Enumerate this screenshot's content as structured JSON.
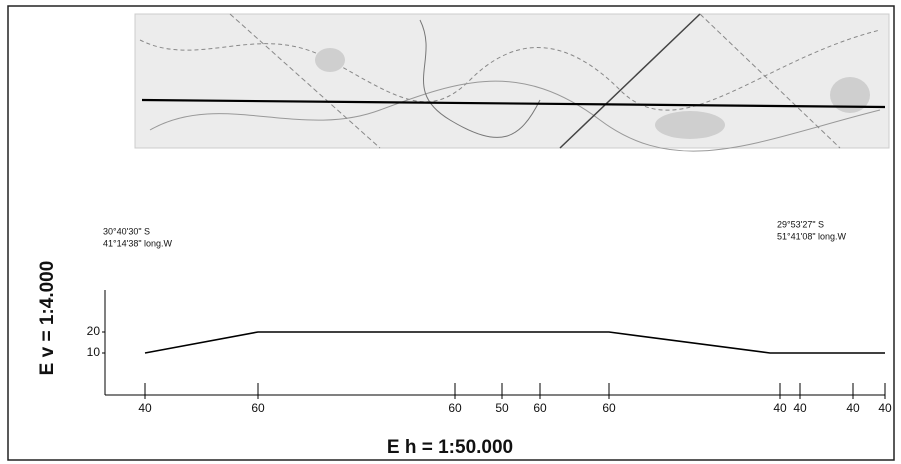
{
  "chart_data": {
    "type": "line",
    "scale_v": "E v = 1:4.000",
    "scale_h": "E h = 1:50.000",
    "coords_left": [
      "30°40'30\" S",
      "41°14'38\" long.W"
    ],
    "coords_right": [
      "29°53'27\" S",
      "51°41'08\" long.W"
    ],
    "x": [
      40,
      153,
      504,
      665,
      780
    ],
    "values": [
      10,
      20,
      20,
      10,
      10
    ],
    "color": "#000000",
    "xlim": [
      0,
      780
    ],
    "ylim": [
      -10,
      40
    ],
    "xticks": [
      {
        "value": 40,
        "label": "40"
      },
      {
        "value": 153,
        "label": "60"
      },
      {
        "value": 350,
        "label": "60"
      },
      {
        "value": 397,
        "label": "50"
      },
      {
        "value": 435,
        "label": "60"
      },
      {
        "value": 504,
        "label": "60"
      },
      {
        "value": 675,
        "label": "40"
      },
      {
        "value": 695,
        "label": "40"
      },
      {
        "value": 748,
        "label": "40"
      },
      {
        "value": 780,
        "label": "40"
      }
    ],
    "yticks": [
      10,
      20
    ]
  }
}
